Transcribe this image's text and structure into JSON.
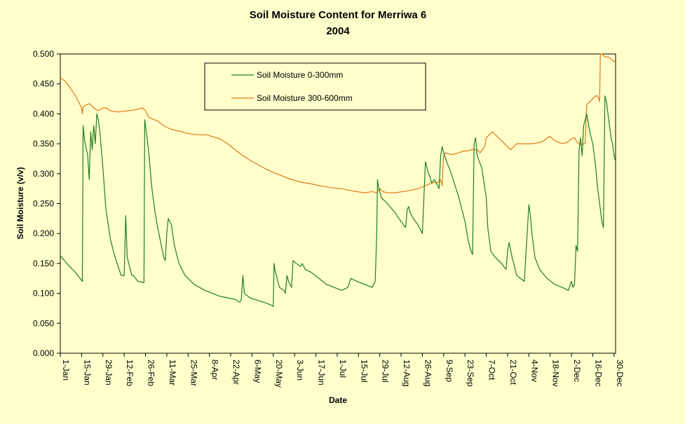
{
  "chart_data": {
    "type": "line",
    "title": "Soil Moisture Content for Merriwa 6",
    "subtitle": "2004",
    "xlabel": "Date",
    "ylabel": "Soil Moisture (v/v)",
    "ylim": [
      0,
      0.5
    ],
    "yticks": [
      "0.000",
      "0.050",
      "0.100",
      "0.150",
      "0.200",
      "0.250",
      "0.300",
      "0.350",
      "0.400",
      "0.450",
      "0.500"
    ],
    "x_domain_days": [
      0,
      365
    ],
    "x_ticks": [
      {
        "label": "1-Jan",
        "day": 0
      },
      {
        "label": "15-Jan",
        "day": 14
      },
      {
        "label": "29-Jan",
        "day": 28
      },
      {
        "label": "12-Feb",
        "day": 42
      },
      {
        "label": "26-Feb",
        "day": 56
      },
      {
        "label": "11-Mar",
        "day": 70
      },
      {
        "label": "25-Mar",
        "day": 84
      },
      {
        "label": "8-Apr",
        "day": 98
      },
      {
        "label": "22-Apr",
        "day": 112
      },
      {
        "label": "6-May",
        "day": 126
      },
      {
        "label": "20-May",
        "day": 140
      },
      {
        "label": "3-Jun",
        "day": 154
      },
      {
        "label": "17-Jun",
        "day": 168
      },
      {
        "label": "1-Jul",
        "day": 182
      },
      {
        "label": "15-Jul",
        "day": 196
      },
      {
        "label": "29-Jul",
        "day": 210
      },
      {
        "label": "12-Aug",
        "day": 224
      },
      {
        "label": "26-Aug",
        "day": 238
      },
      {
        "label": "9-Sep",
        "day": 252
      },
      {
        "label": "23-Sep",
        "day": 266
      },
      {
        "label": "7-Oct",
        "day": 280
      },
      {
        "label": "21-Oct",
        "day": 294
      },
      {
        "label": "4-Nov",
        "day": 308
      },
      {
        "label": "18-Nov",
        "day": 322
      },
      {
        "label": "2-Dec",
        "day": 336
      },
      {
        "label": "16-Dec",
        "day": 350
      },
      {
        "label": "30-Dec",
        "day": 364
      }
    ],
    "grid": false,
    "legend_position": "top-center",
    "series": [
      {
        "name": "Soil Moisture 0-300mm",
        "color": "#1F7F1F",
        "x": [
          0,
          5,
          10,
          14.5,
          15,
          16,
          18,
          19,
          20,
          21,
          22,
          23,
          24,
          25,
          26,
          27,
          28,
          30,
          33,
          36,
          40,
          42,
          43,
          44,
          45,
          46,
          47,
          48,
          51,
          55,
          55.5,
          56,
          58,
          60,
          62,
          64,
          66,
          68,
          69,
          70,
          71,
          72,
          73,
          75,
          78,
          82,
          88,
          95,
          105,
          115,
          118,
          119,
          120,
          121,
          125,
          130,
          134,
          139,
          140,
          140.5,
          141,
          144,
          147,
          148,
          149,
          150,
          151,
          152,
          153,
          155,
          158,
          159,
          160,
          161,
          165,
          170,
          175,
          180,
          185,
          189,
          191,
          195,
          200,
          205,
          207,
          208,
          208.5,
          209,
          211,
          215,
          220,
          224,
          227,
          228,
          229,
          230,
          232,
          235,
          236,
          238,
          240,
          242,
          243,
          244,
          246,
          248,
          249,
          250,
          251,
          252,
          254,
          257,
          262,
          266,
          268,
          270,
          271,
          272,
          273,
          274,
          277,
          280,
          281,
          283,
          286,
          290,
          293,
          294,
          295,
          297,
          300,
          305,
          308,
          309,
          310,
          312,
          315,
          320,
          325,
          330,
          334,
          336,
          337,
          338,
          339,
          340,
          341,
          342,
          343,
          344,
          346,
          348,
          350,
          351,
          352,
          353,
          354,
          355,
          356,
          357,
          358,
          359,
          360,
          361,
          362,
          363,
          364,
          365
        ],
        "values": [
          0.163,
          0.148,
          0.135,
          0.12,
          0.38,
          0.355,
          0.33,
          0.29,
          0.37,
          0.34,
          0.38,
          0.35,
          0.4,
          0.39,
          0.37,
          0.34,
          0.31,
          0.24,
          0.19,
          0.16,
          0.13,
          0.13,
          0.23,
          0.16,
          0.15,
          0.14,
          0.13,
          0.13,
          0.12,
          0.118,
          0.39,
          0.38,
          0.34,
          0.28,
          0.24,
          0.21,
          0.185,
          0.16,
          0.155,
          0.2,
          0.225,
          0.22,
          0.215,
          0.18,
          0.15,
          0.13,
          0.115,
          0.105,
          0.095,
          0.09,
          0.085,
          0.09,
          0.13,
          0.1,
          0.092,
          0.088,
          0.085,
          0.08,
          0.078,
          0.15,
          0.14,
          0.11,
          0.105,
          0.1,
          0.13,
          0.12,
          0.115,
          0.11,
          0.155,
          0.15,
          0.145,
          0.15,
          0.145,
          0.14,
          0.135,
          0.125,
          0.115,
          0.11,
          0.105,
          0.11,
          0.125,
          0.12,
          0.115,
          0.11,
          0.12,
          0.2,
          0.29,
          0.28,
          0.26,
          0.25,
          0.235,
          0.22,
          0.21,
          0.24,
          0.245,
          0.235,
          0.225,
          0.215,
          0.21,
          0.2,
          0.32,
          0.3,
          0.295,
          0.285,
          0.29,
          0.28,
          0.275,
          0.33,
          0.345,
          0.335,
          0.32,
          0.3,
          0.26,
          0.22,
          0.19,
          0.17,
          0.165,
          0.35,
          0.36,
          0.33,
          0.31,
          0.26,
          0.21,
          0.17,
          0.16,
          0.15,
          0.14,
          0.17,
          0.185,
          0.16,
          0.13,
          0.12,
          0.248,
          0.23,
          0.2,
          0.16,
          0.14,
          0.125,
          0.115,
          0.11,
          0.105,
          0.12,
          0.11,
          0.115,
          0.18,
          0.17,
          0.34,
          0.36,
          0.33,
          0.38,
          0.4,
          0.37,
          0.35,
          0.33,
          0.31,
          0.28,
          0.26,
          0.24,
          0.22,
          0.21,
          0.43,
          0.42,
          0.4,
          0.38,
          0.36,
          0.35,
          0.33,
          0.32
        ]
      },
      {
        "name": "Soil Moisture 300-600mm",
        "color": "#E07818",
        "x": [
          0,
          3,
          6,
          10,
          14,
          14.5,
          15,
          17,
          19,
          22,
          25,
          28,
          30,
          33,
          38,
          44,
          50,
          54,
          56,
          58,
          60,
          64,
          68,
          72,
          76,
          80,
          84,
          90,
          96,
          100,
          105,
          110,
          115,
          120,
          125,
          130,
          135,
          140,
          145,
          150,
          155,
          160,
          165,
          170,
          175,
          180,
          185,
          190,
          195,
          200,
          205,
          208,
          210,
          212,
          215,
          220,
          225,
          230,
          235,
          240,
          245,
          248,
          250,
          251,
          252,
          253,
          255,
          258,
          262,
          265,
          268,
          270,
          272,
          274,
          276,
          279,
          280,
          282,
          284,
          286,
          288,
          290,
          292,
          294,
          296,
          298,
          300,
          305,
          310,
          315,
          318,
          320,
          322,
          325,
          330,
          333,
          336,
          338,
          340,
          342,
          344,
          345,
          346,
          348,
          350,
          352,
          353,
          354,
          354.5,
          355,
          356,
          358,
          360,
          362,
          364,
          365
        ],
        "values": [
          0.46,
          0.455,
          0.445,
          0.43,
          0.41,
          0.4,
          0.412,
          0.415,
          0.417,
          0.41,
          0.405,
          0.41,
          0.41,
          0.405,
          0.403,
          0.405,
          0.407,
          0.41,
          0.405,
          0.395,
          0.392,
          0.388,
          0.38,
          0.375,
          0.372,
          0.37,
          0.367,
          0.365,
          0.365,
          0.362,
          0.358,
          0.35,
          0.34,
          0.33,
          0.322,
          0.315,
          0.308,
          0.302,
          0.297,
          0.292,
          0.288,
          0.285,
          0.283,
          0.28,
          0.278,
          0.276,
          0.275,
          0.272,
          0.27,
          0.268,
          0.27,
          0.268,
          0.275,
          0.27,
          0.268,
          0.268,
          0.27,
          0.272,
          0.275,
          0.28,
          0.285,
          0.285,
          0.29,
          0.28,
          0.33,
          0.335,
          0.333,
          0.332,
          0.335,
          0.338,
          0.338,
          0.34,
          0.34,
          0.34,
          0.335,
          0.345,
          0.36,
          0.365,
          0.37,
          0.365,
          0.36,
          0.355,
          0.35,
          0.345,
          0.34,
          0.345,
          0.35,
          0.35,
          0.35,
          0.352,
          0.355,
          0.36,
          0.362,
          0.355,
          0.35,
          0.352,
          0.358,
          0.36,
          0.352,
          0.348,
          0.35,
          0.35,
          0.415,
          0.42,
          0.425,
          0.43,
          0.43,
          0.425,
          0.42,
          0.5,
          0.5,
          0.495,
          0.495,
          0.492,
          0.488,
          0.485
        ]
      }
    ]
  }
}
